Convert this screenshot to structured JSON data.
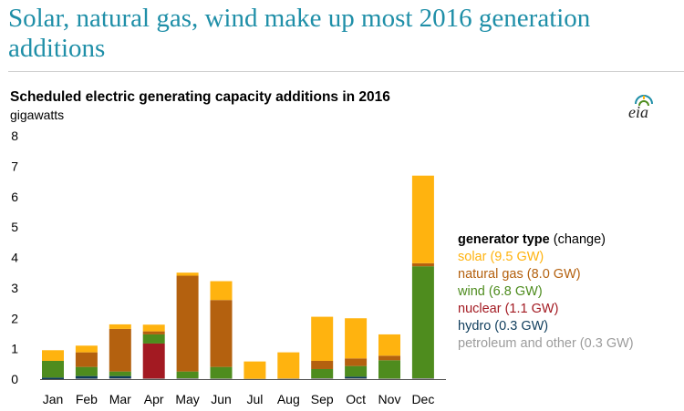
{
  "page": {
    "headline": "Solar, natural gas, wind make up most 2016 generation additions",
    "subtitle": "Scheduled electric generating capacity additions in 2016",
    "unit": "gigawatts",
    "logo_text": "eia"
  },
  "legend": {
    "title_bold": "generator type",
    "title_rest": " (change)",
    "items": [
      {
        "label": "solar (9.5 GW)",
        "color": "#ffb30f"
      },
      {
        "label": "natural gas (8.0 GW)",
        "color": "#b4610f"
      },
      {
        "label": "wind (6.8 GW)",
        "color": "#4e8c1e"
      },
      {
        "label": "nuclear (1.1 GW)",
        "color": "#a31a22"
      },
      {
        "label": "hydro (0.3 GW)",
        "color": "#0f3d5c"
      },
      {
        "label": "petroleum and other (0.3 GW)",
        "color": "#9c9c9c"
      }
    ]
  },
  "chart_data": {
    "type": "bar",
    "stacked": true,
    "title": "Scheduled electric generating capacity additions in 2016",
    "ylabel": "gigawatts",
    "ylim": [
      0,
      8
    ],
    "yticks": [
      0,
      1,
      2,
      3,
      4,
      5,
      6,
      7,
      8
    ],
    "grid": false,
    "legend_position": "right",
    "categories": [
      "Jan",
      "Feb",
      "Mar",
      "Apr",
      "May",
      "Jun",
      "Jul",
      "Aug",
      "Sep",
      "Oct",
      "Nov",
      "Dec"
    ],
    "series": [
      {
        "name": "petroleum and other",
        "color": "#9c9c9c",
        "values": [
          0.0,
          0.02,
          0.03,
          0.02,
          0.03,
          0.02,
          0.01,
          0.02,
          0.03,
          0.03,
          0.02,
          0.03
        ]
      },
      {
        "name": "hydro",
        "color": "#0f3d5c",
        "values": [
          0.05,
          0.08,
          0.07,
          0.0,
          0.0,
          0.0,
          0.0,
          0.0,
          0.0,
          0.05,
          0.0,
          0.0
        ]
      },
      {
        "name": "nuclear",
        "color": "#a31a22",
        "values": [
          0.0,
          0.0,
          0.0,
          1.15,
          0.0,
          0.0,
          0.0,
          0.0,
          0.0,
          0.0,
          0.0,
          0.0
        ]
      },
      {
        "name": "wind",
        "color": "#4e8c1e",
        "values": [
          0.55,
          0.3,
          0.15,
          0.3,
          0.22,
          0.38,
          0.0,
          0.0,
          0.3,
          0.35,
          0.6,
          3.68
        ]
      },
      {
        "name": "natural gas",
        "color": "#b4610f",
        "values": [
          0.0,
          0.48,
          1.4,
          0.1,
          3.15,
          2.2,
          0.0,
          0.0,
          0.27,
          0.25,
          0.15,
          0.1
        ]
      },
      {
        "name": "solar",
        "color": "#ffb30f",
        "values": [
          0.35,
          0.22,
          0.15,
          0.22,
          0.1,
          0.62,
          0.57,
          0.86,
          1.45,
          1.32,
          0.7,
          2.88
        ]
      }
    ]
  }
}
